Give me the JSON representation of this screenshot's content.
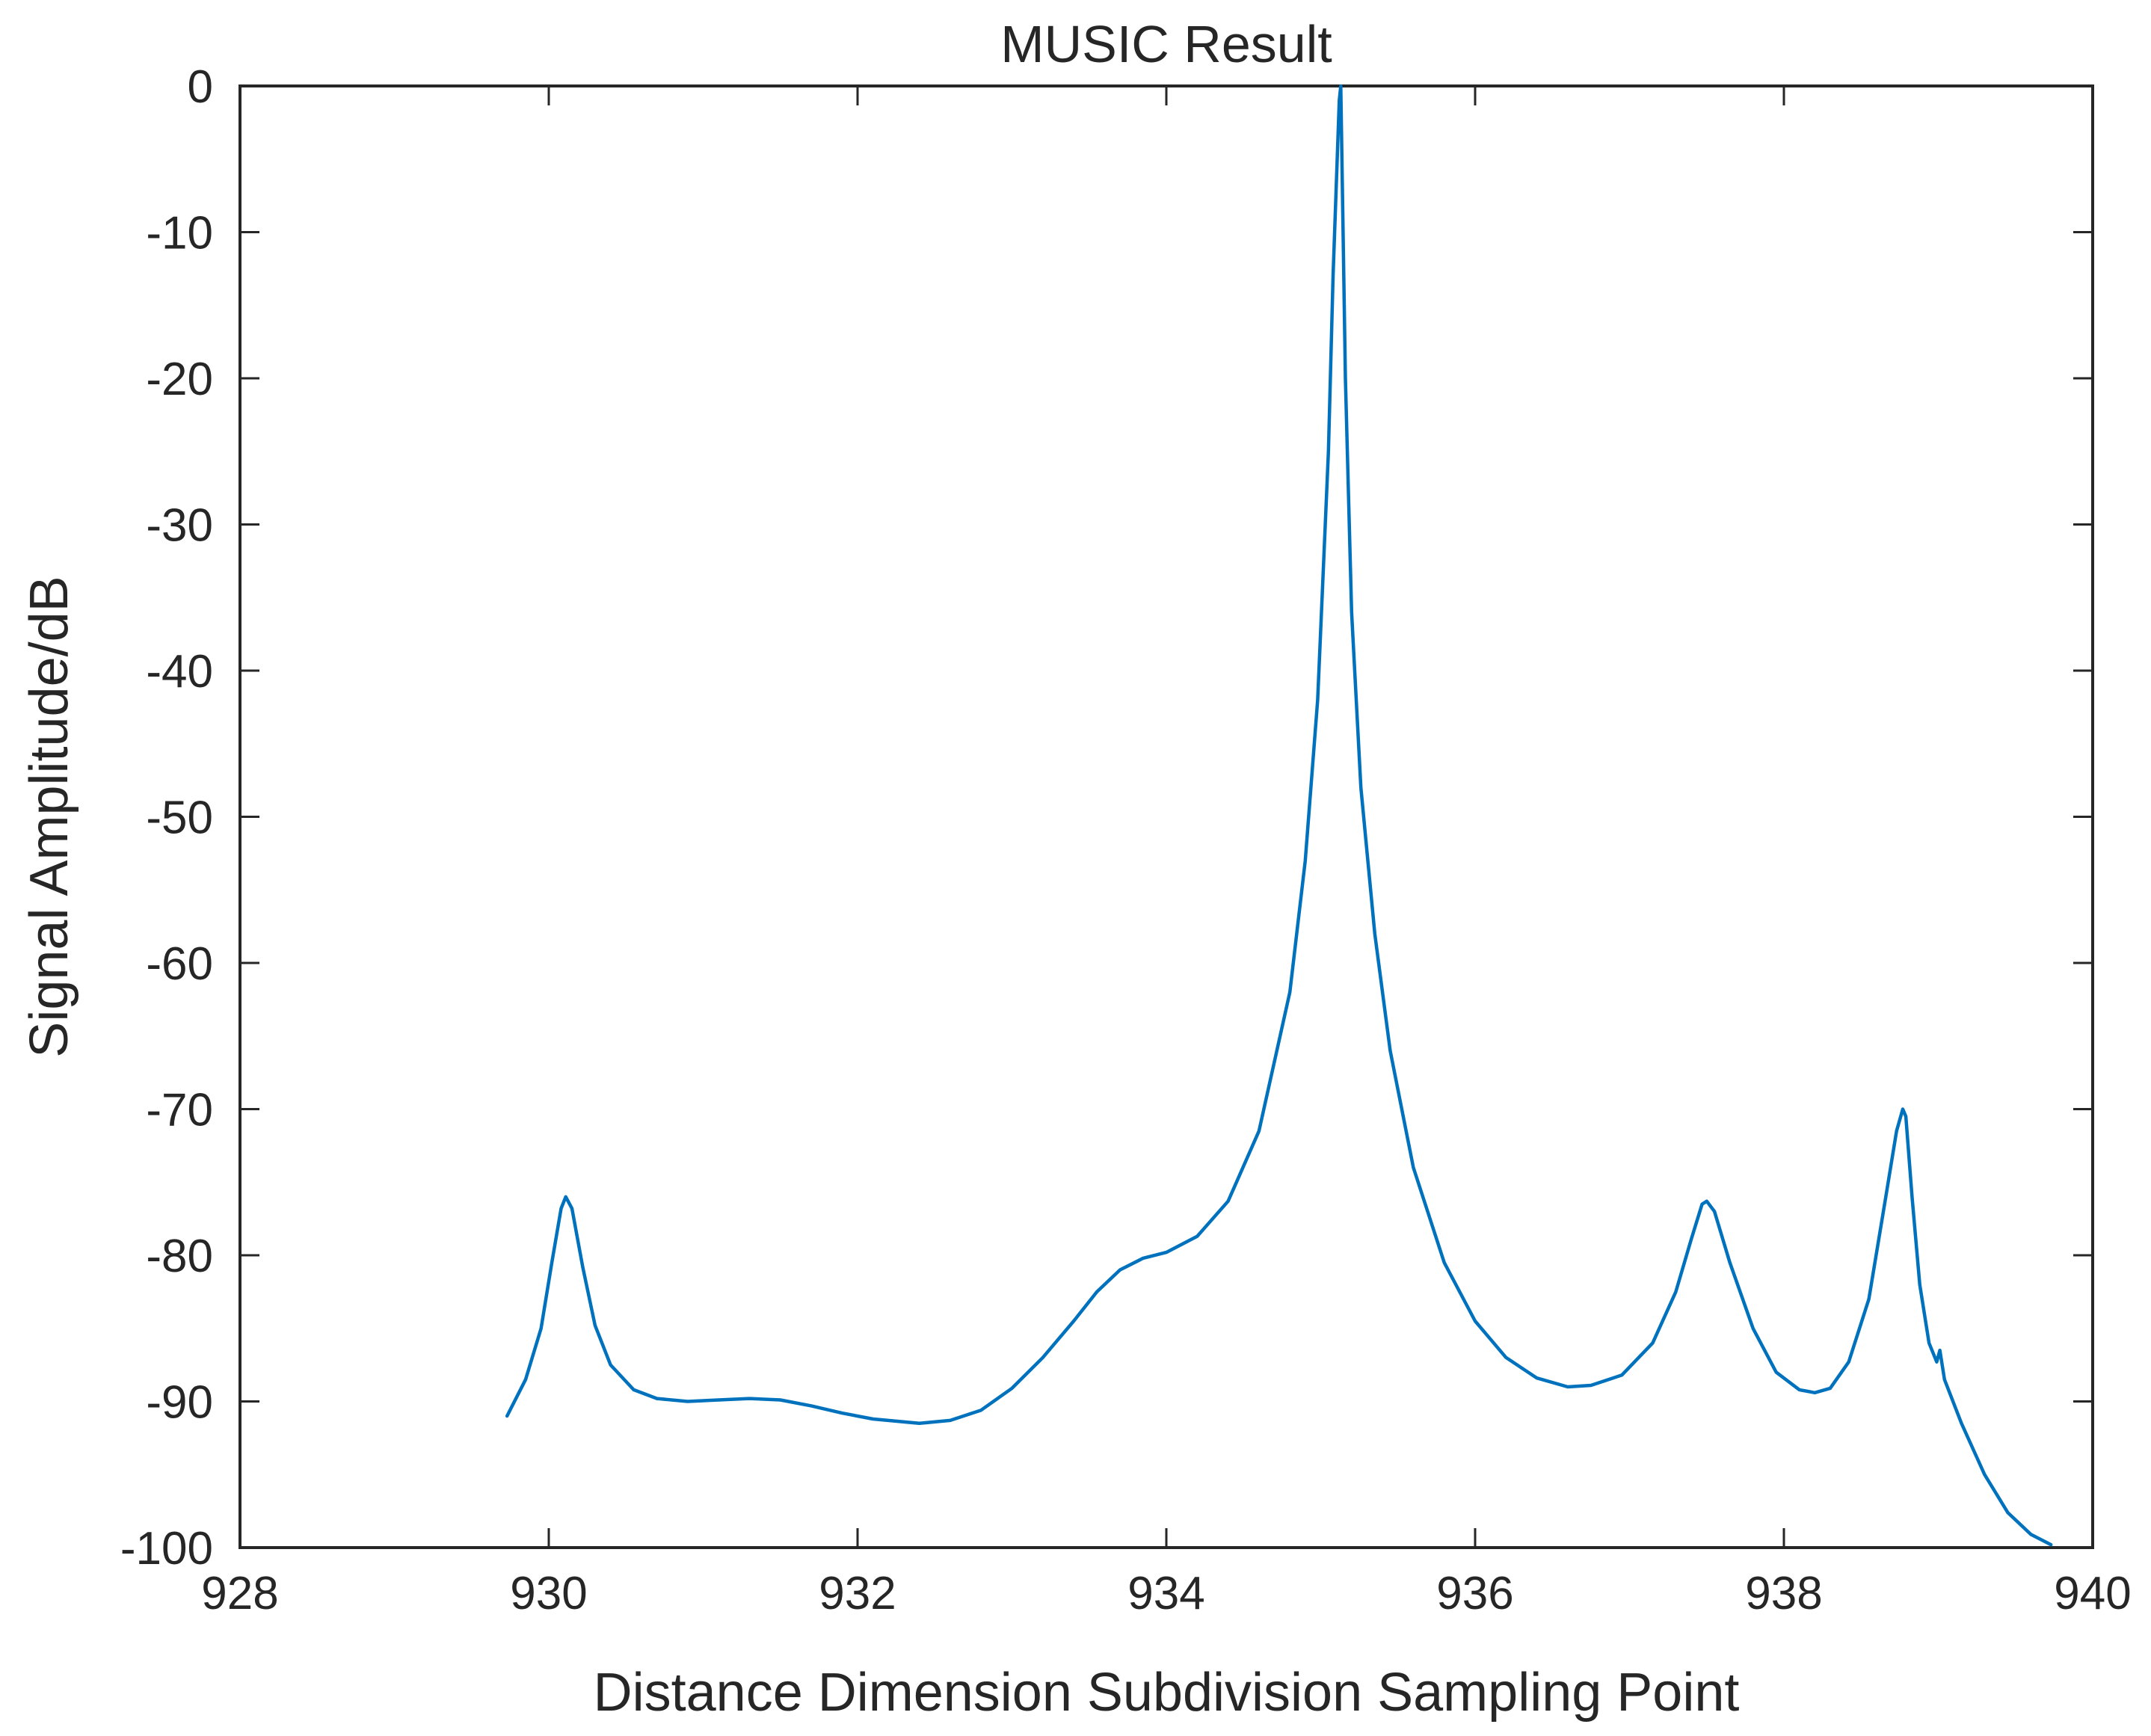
{
  "chart_data": {
    "type": "line",
    "title": "MUSIC Result",
    "xlabel": "Distance Dimension Subdivision Sampling Point",
    "ylabel": "Signal Amplitude/dB",
    "xlim": [
      928,
      940
    ],
    "ylim": [
      -100,
      0
    ],
    "xticks": [
      "928",
      "930",
      "932",
      "934",
      "936",
      "938",
      "940"
    ],
    "yticks": [
      "0",
      "-10",
      "-20",
      "-30",
      "-40",
      "-50",
      "-60",
      "-70",
      "-80",
      "-90",
      "-100"
    ],
    "grid": false,
    "line_color": "#0072BD",
    "series": [
      {
        "x": [
          929.73,
          929.85,
          929.95,
          930.02,
          930.08,
          930.11,
          930.15,
          930.22,
          930.3,
          930.4,
          930.55,
          930.7,
          930.9,
          931.1,
          931.3,
          931.5,
          931.7,
          931.9,
          932.1,
          932.4,
          932.6,
          932.8,
          933.0,
          933.2,
          933.4,
          933.55,
          933.7,
          933.85,
          934.0,
          934.2,
          934.4,
          934.6,
          934.8,
          934.9,
          934.98,
          935.05,
          935.08,
          935.12,
          935.13,
          935.16,
          935.2,
          935.26,
          935.35,
          935.45,
          935.6,
          935.8,
          936.0,
          936.2,
          936.4,
          936.6,
          936.75,
          936.95,
          937.15,
          937.3,
          937.4,
          937.47,
          937.5,
          937.55,
          937.65,
          937.8,
          937.95,
          938.1,
          938.2,
          938.3,
          938.42,
          938.55,
          938.66,
          938.73,
          938.77,
          938.79,
          938.83,
          938.88,
          938.94,
          938.99,
          939.01,
          939.04,
          939.15,
          939.3,
          939.45,
          939.6,
          939.73
        ],
        "y": [
          -91,
          -88.5,
          -85,
          -80.5,
          -76.8,
          -76,
          -76.8,
          -80.8,
          -84.8,
          -87.5,
          -89.2,
          -89.8,
          -90,
          -89.9,
          -89.8,
          -89.9,
          -90.3,
          -90.8,
          -91.2,
          -91.5,
          -91.3,
          -90.6,
          -89.1,
          -87,
          -84.5,
          -82.5,
          -81,
          -80.2,
          -79.8,
          -78.7,
          -76.3,
          -71.5,
          -62,
          -53,
          -42,
          -25,
          -13,
          -1,
          0,
          -20,
          -36,
          -48,
          -58,
          -66,
          -74,
          -80.5,
          -84.5,
          -87,
          -88.4,
          -89,
          -88.9,
          -88.2,
          -86,
          -82.5,
          -78.9,
          -76.5,
          -76.3,
          -77,
          -80.5,
          -85,
          -88,
          -89.2,
          -89.4,
          -89.1,
          -87.3,
          -83,
          -76,
          -71.5,
          -70,
          -70.5,
          -76,
          -82,
          -86,
          -87.3,
          -86.5,
          -88.5,
          -91.5,
          -95,
          -97.6,
          -99.1,
          -99.8
        ]
      }
    ]
  }
}
